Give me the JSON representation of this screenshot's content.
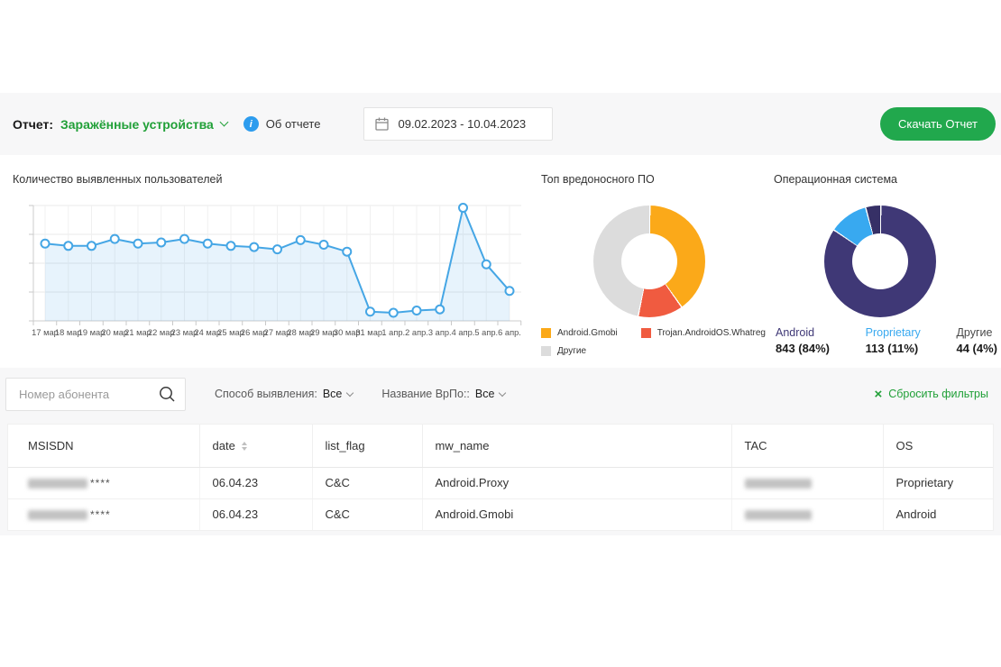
{
  "colors": {
    "accent_green": "#21a038",
    "button_green": "#21a84d",
    "line_blue": "#45a6e5",
    "band_gray": "#f7f7f8",
    "info_blue": "#2d9cee"
  },
  "header": {
    "report_prefix": "Отчет:",
    "report_name": "Заражённые устройства",
    "about_label": "Об отчете",
    "date_range": "09.02.2023 - 10.04.2023",
    "download_button": "Скачать Отчет"
  },
  "chart_data": [
    {
      "type": "line",
      "title": "Количество выявленных пользователей",
      "x": [
        "17 мар",
        "18 мар",
        "19 мар",
        "20 мар",
        "21 мар",
        "22 мар",
        "23 мар",
        "24 мар",
        "25 мар",
        "26 мар",
        "27 мар",
        "28 мар",
        "29 мар",
        "30 мар",
        "31 мар.",
        "1 апр.",
        "2 апр.",
        "3 апр.",
        "4 апр.",
        "5 апр.",
        "6 апр."
      ],
      "values": [
        67,
        65,
        65,
        71,
        67,
        68,
        71,
        67,
        65,
        64,
        62,
        70,
        66,
        60,
        8,
        7,
        9,
        10,
        98,
        49,
        26
      ],
      "ylim": [
        0,
        100
      ],
      "ylabel": "",
      "xlabel": "",
      "grid": true,
      "y_tick_labels_visible": false,
      "legend": false
    },
    {
      "type": "pie",
      "title": "Топ вредоносного ПО",
      "donut": true,
      "legend_position": "bottom",
      "slices": [
        {
          "label": "Android.Gmobi",
          "value_pct": 40,
          "color": "#fba919"
        },
        {
          "label": "Trojan.AndroidOS.Whatreg",
          "value_pct": 13,
          "color": "#f05b40"
        },
        {
          "label": "Другие",
          "value_pct": 47,
          "color": "#dcdcdc"
        }
      ]
    },
    {
      "type": "pie",
      "title": "Операционная система",
      "donut": true,
      "legend_position": "bottom-stats",
      "slices": [
        {
          "label": "Android",
          "count": 843,
          "pct": "84%",
          "stat": "843 (84%)",
          "color": "#3f3876",
          "label_color": "#3f3876"
        },
        {
          "label": "Proprietary",
          "count": 113,
          "pct": "11%",
          "stat": "113 (11%)",
          "color": "#38a9f0",
          "label_color": "#38a9f0"
        },
        {
          "label": "Другие",
          "count": 44,
          "pct": "4%",
          "stat": "44 (4%)",
          "color": "#363066",
          "label_color": "#4a4a4a"
        }
      ]
    }
  ],
  "filters": {
    "search_placeholder": "Номер абонента",
    "detection_label": "Способ выявления:",
    "detection_value": "Все",
    "malware_label": "Название ВрПо::",
    "malware_value": "Все",
    "reset_label": "Сбросить фильтры",
    "reset_x": "×"
  },
  "table": {
    "columns": [
      {
        "key": "msisdn",
        "label": "MSISDN",
        "sortable": false
      },
      {
        "key": "date",
        "label": "date",
        "sortable": true
      },
      {
        "key": "list_flag",
        "label": "list_flag",
        "sortable": false
      },
      {
        "key": "mw_name",
        "label": "mw_name",
        "sortable": false
      },
      {
        "key": "tac",
        "label": "TAC",
        "sortable": false
      },
      {
        "key": "os",
        "label": "OS",
        "sortable": false
      }
    ],
    "rows": [
      {
        "msisdn_masked": true,
        "msisdn_suffix": "****",
        "date": "06.04.23",
        "list_flag": "C&C",
        "mw_name": "Android.Proxy",
        "tac_masked": true,
        "os": "Proprietary"
      },
      {
        "msisdn_masked": true,
        "msisdn_suffix": "****",
        "date": "06.04.23",
        "list_flag": "C&C",
        "mw_name": "Android.Gmobi",
        "tac_masked": true,
        "os": "Android"
      }
    ]
  }
}
